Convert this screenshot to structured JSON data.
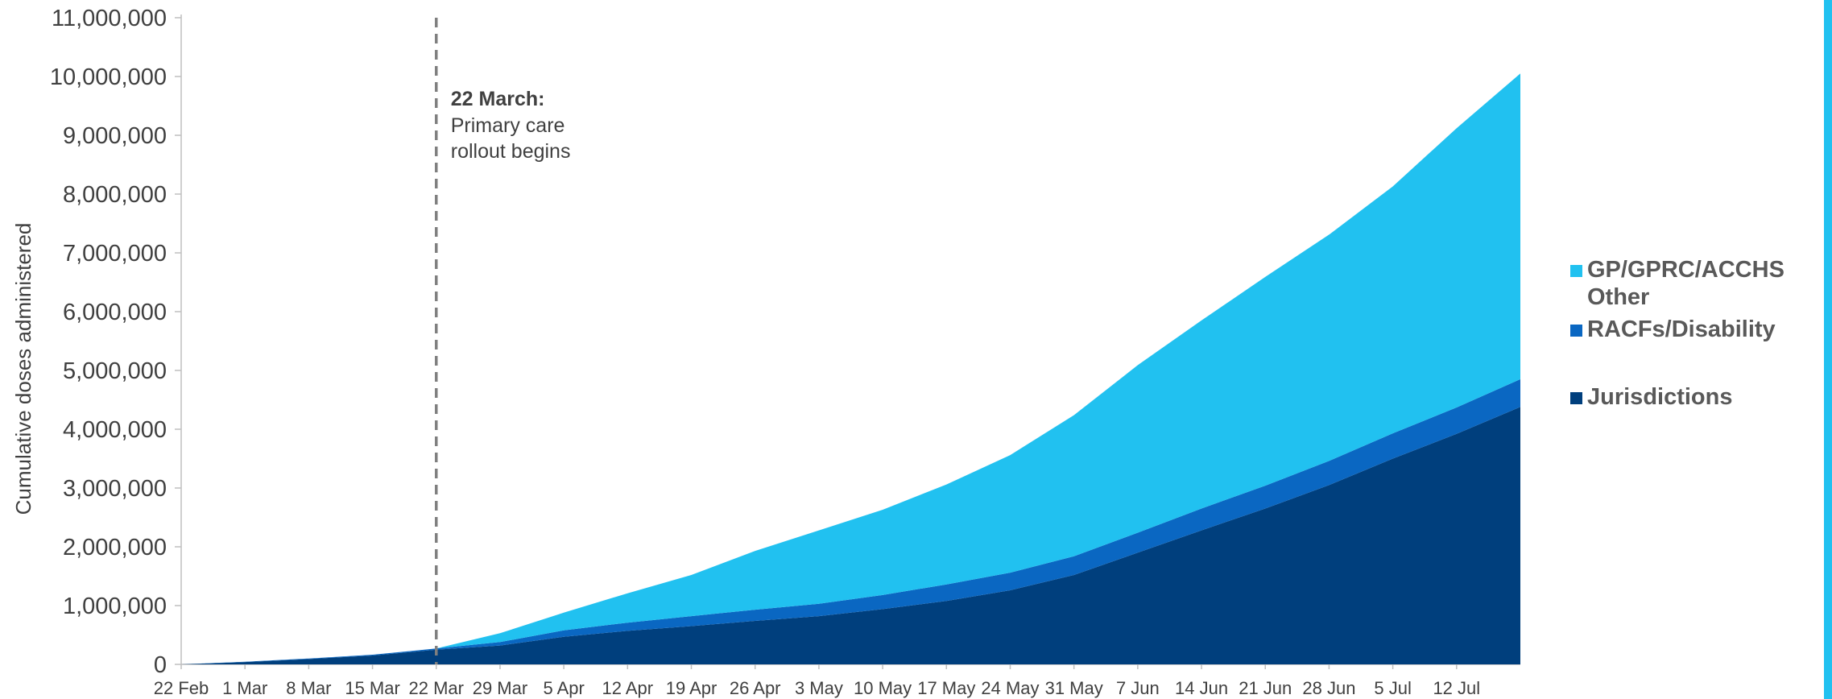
{
  "colors": {
    "jurisdictions": "#003f7d",
    "racfs": "#0a67c2",
    "gp": "#21c1f0",
    "axis": "#bfbfbf",
    "annotation_line": "#7f7f7f",
    "accent_bar": "#21c1f0"
  },
  "annotation": {
    "title": "22 March:",
    "line1": "Primary care",
    "line2": "rollout begins",
    "x": "2021-03-22"
  },
  "legend": [
    {
      "label": "GP/GPRC/ACCHS Other",
      "line1": "GP/GPRC/ACCHS",
      "line2": "Other",
      "color": "#21c1f0"
    },
    {
      "label": "RACFs/Disability",
      "color": "#0a67c2"
    },
    {
      "label": "Jurisdictions",
      "color": "#003f7d"
    }
  ],
  "chart_data": {
    "type": "area",
    "stacked": true,
    "title": "",
    "xlabel": "",
    "ylabel": "Cumulative doses administered",
    "ylim": [
      0,
      11000000
    ],
    "yticks": [
      0,
      1000000,
      2000000,
      3000000,
      4000000,
      5000000,
      6000000,
      7000000,
      8000000,
      9000000,
      10000000,
      11000000
    ],
    "ytick_labels": [
      "0",
      "1,000,000",
      "2,000,000",
      "3,000,000",
      "4,000,000",
      "5,000,000",
      "6,000,000",
      "7,000,000",
      "8,000,000",
      "9,000,000",
      "10,000,000",
      "11,000,000"
    ],
    "xticks": [
      "2021-02-22",
      "2021-03-01",
      "2021-03-08",
      "2021-03-15",
      "2021-03-22",
      "2021-03-29",
      "2021-04-05",
      "2021-04-12",
      "2021-04-19",
      "2021-04-26",
      "2021-05-03",
      "2021-05-10",
      "2021-05-17",
      "2021-05-24",
      "2021-05-31",
      "2021-06-07",
      "2021-06-14",
      "2021-06-21",
      "2021-06-28",
      "2021-07-05",
      "2021-07-12"
    ],
    "xtick_labels": [
      "22 Feb",
      "1 Mar",
      "8 Mar",
      "15 Mar",
      "22 Mar",
      "29 Mar",
      "5 Apr",
      "12 Apr",
      "19 Apr",
      "26 Apr",
      "3 May",
      "10 May",
      "17 May",
      "24 May",
      "31 May",
      "7 Jun",
      "14 Jun",
      "21 Jun",
      "28 Jun",
      "5 Jul",
      "12 Jul"
    ],
    "legend_position": "right",
    "x": [
      "2021-02-22",
      "2021-03-01",
      "2021-03-08",
      "2021-03-15",
      "2021-03-22",
      "2021-03-29",
      "2021-04-05",
      "2021-04-12",
      "2021-04-19",
      "2021-04-26",
      "2021-05-03",
      "2021-05-10",
      "2021-05-17",
      "2021-05-24",
      "2021-05-31",
      "2021-06-07",
      "2021-06-14",
      "2021-06-21",
      "2021-06-28",
      "2021-07-05",
      "2021-07-12",
      "2021-07-19"
    ],
    "series": [
      {
        "name": "Jurisdictions",
        "color": "#003f7d",
        "values": [
          0,
          40000,
          90000,
          150000,
          250000,
          320000,
          470000,
          570000,
          650000,
          740000,
          820000,
          940000,
          1080000,
          1260000,
          1520000,
          1900000,
          2280000,
          2650000,
          3050000,
          3500000,
          3920000,
          4380000
        ]
      },
      {
        "name": "RACFs/Disability",
        "color": "#0a67c2",
        "values": [
          0,
          5000,
          10000,
          15000,
          20000,
          60000,
          110000,
          140000,
          170000,
          190000,
          210000,
          240000,
          280000,
          300000,
          320000,
          340000,
          370000,
          390000,
          410000,
          430000,
          450000,
          470000
        ]
      },
      {
        "name": "GP/GPRC/ACCHS Other",
        "color": "#21c1f0",
        "values": [
          0,
          0,
          0,
          0,
          0,
          150000,
          300000,
          500000,
          700000,
          1000000,
          1250000,
          1450000,
          1700000,
          2000000,
          2400000,
          2850000,
          3200000,
          3550000,
          3850000,
          4200000,
          4750000,
          5200000
        ]
      }
    ]
  }
}
